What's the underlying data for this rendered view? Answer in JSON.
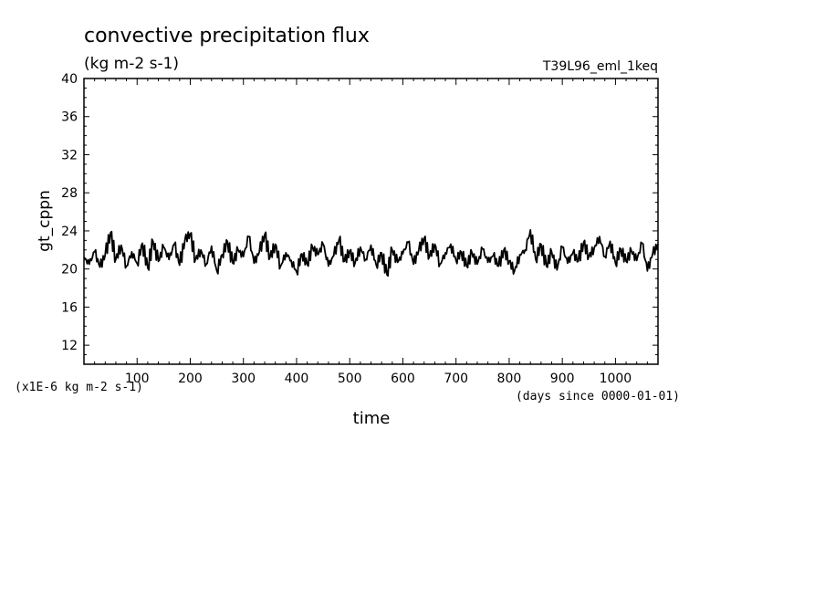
{
  "chart_data": {
    "type": "line",
    "title": "convective precipitation flux",
    "subtitle": "(kg m-2 s-1)",
    "run_label": "T39L96_eml_1keq",
    "xlabel": "time",
    "x_units": "(days since 0000-01-01)",
    "ylabel": "gt_cppn",
    "y_scale_note": "(x1E-6 kg m-2 s-1)",
    "xlim": [
      0,
      1080
    ],
    "ylim": [
      10,
      40
    ],
    "x_ticks": [
      100,
      200,
      300,
      400,
      500,
      600,
      700,
      800,
      900,
      1000
    ],
    "y_ticks": [
      12,
      16,
      20,
      24,
      28,
      32,
      36,
      40
    ],
    "grid": false,
    "line_color": "#000000",
    "series": [
      {
        "x": [
          0,
          10,
          20,
          30,
          40,
          50,
          60,
          70,
          80,
          90,
          100,
          110,
          120,
          130,
          140,
          150,
          160,
          170,
          180,
          190,
          200,
          210,
          220,
          230,
          240,
          250,
          260,
          270,
          280,
          290,
          300,
          310,
          320,
          330,
          340,
          350,
          360,
          370,
          380,
          390,
          400,
          410,
          420,
          430,
          440,
          450,
          460,
          470,
          480,
          490,
          500,
          510,
          520,
          530,
          540,
          550,
          560,
          570,
          580,
          590,
          600,
          610,
          620,
          630,
          640,
          650,
          660,
          670,
          680,
          690,
          700,
          710,
          720,
          730,
          740,
          750,
          760,
          770,
          780,
          790,
          800,
          810,
          820,
          830,
          840,
          850,
          860,
          870,
          880,
          890,
          900,
          910,
          920,
          930,
          940,
          950,
          960,
          970,
          980,
          990,
          1000,
          1010,
          1020,
          1030,
          1040,
          1050,
          1060,
          1070,
          1080
        ],
        "values": [
          21.2,
          20.5,
          21.8,
          20.2,
          21.5,
          23.8,
          21.0,
          22.5,
          20.3,
          21.8,
          20.6,
          22.7,
          20.1,
          22.9,
          20.8,
          22.3,
          21.0,
          22.6,
          20.4,
          23.1,
          23.7,
          21.0,
          22.0,
          20.5,
          22.4,
          19.8,
          21.5,
          22.9,
          20.6,
          22.0,
          21.3,
          23.4,
          20.6,
          21.8,
          23.6,
          21.2,
          22.6,
          20.3,
          21.7,
          20.9,
          19.7,
          21.6,
          20.5,
          22.3,
          21.5,
          22.6,
          20.3,
          21.4,
          23.1,
          20.8,
          21.9,
          20.6,
          22.3,
          21.0,
          22.5,
          20.4,
          21.7,
          19.4,
          22.0,
          20.7,
          21.6,
          22.8,
          20.5,
          22.0,
          23.2,
          21.3,
          22.6,
          20.5,
          21.7,
          22.6,
          20.9,
          21.8,
          20.3,
          21.7,
          20.5,
          22.1,
          20.7,
          21.4,
          20.3,
          22.0,
          20.8,
          19.8,
          21.5,
          22.0,
          24.1,
          21.0,
          22.6,
          20.3,
          21.8,
          19.9,
          22.3,
          20.6,
          21.7,
          20.8,
          22.8,
          21.3,
          22.2,
          23.4,
          21.3,
          22.9,
          20.6,
          22.1,
          20.8,
          21.9,
          20.9,
          22.7,
          19.8,
          21.6,
          22.6
        ]
      }
    ]
  }
}
